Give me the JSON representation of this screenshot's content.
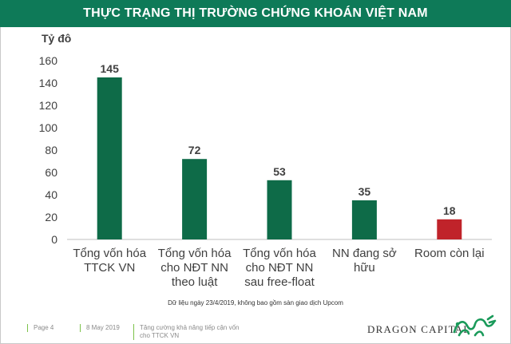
{
  "header": {
    "title": "THỰC TRẠNG THỊ TRƯỜNG CHỨNG KHOÁN VIỆT NAM"
  },
  "chart_data": {
    "type": "bar",
    "ylabel": "Tỷ đô",
    "ylim": [
      0,
      160
    ],
    "yticks": [
      0,
      20,
      40,
      60,
      80,
      100,
      120,
      140,
      160
    ],
    "grid": false,
    "categories": [
      [
        "Tổng vốn hóa",
        "TTCK VN"
      ],
      [
        "Tổng vốn hóa",
        "cho NĐT NN",
        "theo luật"
      ],
      [
        "Tổng vốn hóa",
        "cho NĐT NN",
        "sau free-float"
      ],
      [
        "NN đang sở",
        "hữu"
      ],
      [
        "Room còn lại"
      ]
    ],
    "values": [
      145,
      72,
      53,
      35,
      18
    ],
    "colors": [
      "#0e6b48",
      "#0e6b48",
      "#0e6b48",
      "#0e6b48",
      "#c0232a"
    ]
  },
  "note": "Dữ liệu ngày 23/4/2019, không bao gồm sàn giao dịch Upcom",
  "footer": {
    "page": "Page 4",
    "date": "8 May 2019",
    "topic_line1": "Tăng cường khả năng tiếp cận vốn",
    "topic_line2": "cho TTCK VN",
    "brand": "DRAGON CAPITAL",
    "logo_icon": "dragon-logo-icon"
  },
  "theme": {
    "title_bg": "#0e7a58",
    "accent": "#7cc24a"
  }
}
